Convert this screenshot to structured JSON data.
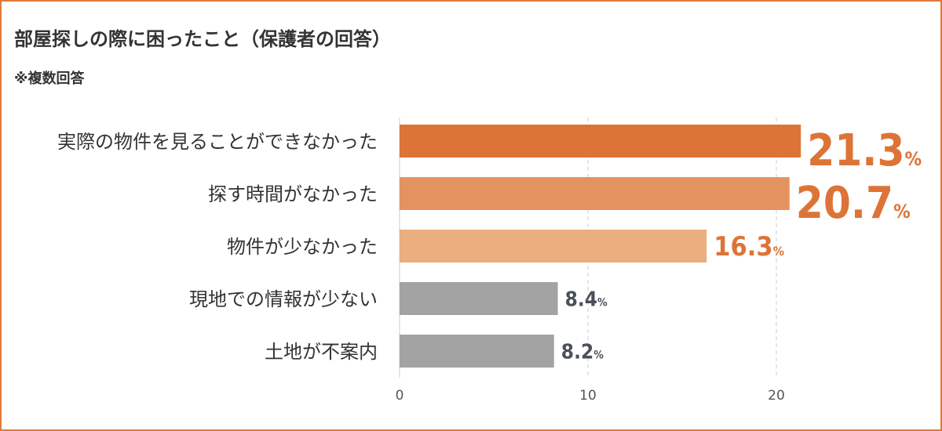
{
  "header": {
    "title": "部屋探しの際に困ったこと（保護者の回答）",
    "note": "※複数回答"
  },
  "chart_data": {
    "type": "bar",
    "orientation": "horizontal",
    "categories": [
      "実際の物件を見ることができなかった",
      "探す時間がなかった",
      "物件が少なかった",
      "現地での情報が少ない",
      "土地が不案内"
    ],
    "values": [
      21.3,
      20.7,
      16.3,
      8.4,
      8.2
    ],
    "value_labels": [
      "21.3",
      "20.7",
      "16.3",
      "8.4",
      "8.2"
    ],
    "unit": "%",
    "bar_colors": [
      "#dd7437",
      "#e49360",
      "#ebae7f",
      "#a3a3a3",
      "#a3a3a3"
    ],
    "label_colors": [
      "#dd7437",
      "#dd7437",
      "#dd7437",
      "#4a5058",
      "#4a5058"
    ],
    "xlim": [
      0,
      28
    ],
    "xticks": [
      0,
      10,
      20
    ],
    "grid": true
  }
}
